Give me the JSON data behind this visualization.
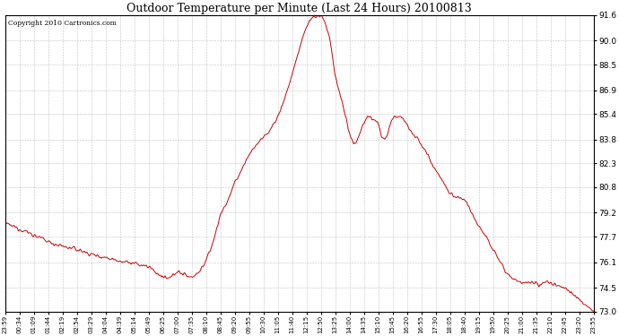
{
  "title": "Outdoor Temperature per Minute (Last 24 Hours) 20100813",
  "copyright_text": "Copyright 2010 Cartronics.com",
  "line_color": "#cc0000",
  "bg_color": "#ffffff",
  "grid_color": "#bbbbbb",
  "yticks": [
    73.0,
    74.5,
    76.1,
    77.7,
    79.2,
    80.8,
    82.3,
    83.8,
    85.4,
    86.9,
    88.5,
    90.0,
    91.6
  ],
  "ylim": [
    73.0,
    91.6
  ],
  "xtick_labels": [
    "23:59",
    "00:34",
    "01:09",
    "01:44",
    "02:19",
    "02:54",
    "03:29",
    "04:04",
    "04:39",
    "05:14",
    "05:49",
    "06:25",
    "07:00",
    "07:35",
    "08:10",
    "08:45",
    "09:20",
    "09:55",
    "10:30",
    "11:05",
    "11:40",
    "12:15",
    "12:50",
    "13:25",
    "14:00",
    "14:35",
    "15:10",
    "15:45",
    "16:20",
    "16:55",
    "17:30",
    "18:05",
    "18:40",
    "19:15",
    "19:50",
    "20:25",
    "21:00",
    "21:35",
    "22:10",
    "22:45",
    "23:20",
    "23:55"
  ],
  "num_points": 1440,
  "figwidth": 6.9,
  "figheight": 3.75,
  "dpi": 100
}
